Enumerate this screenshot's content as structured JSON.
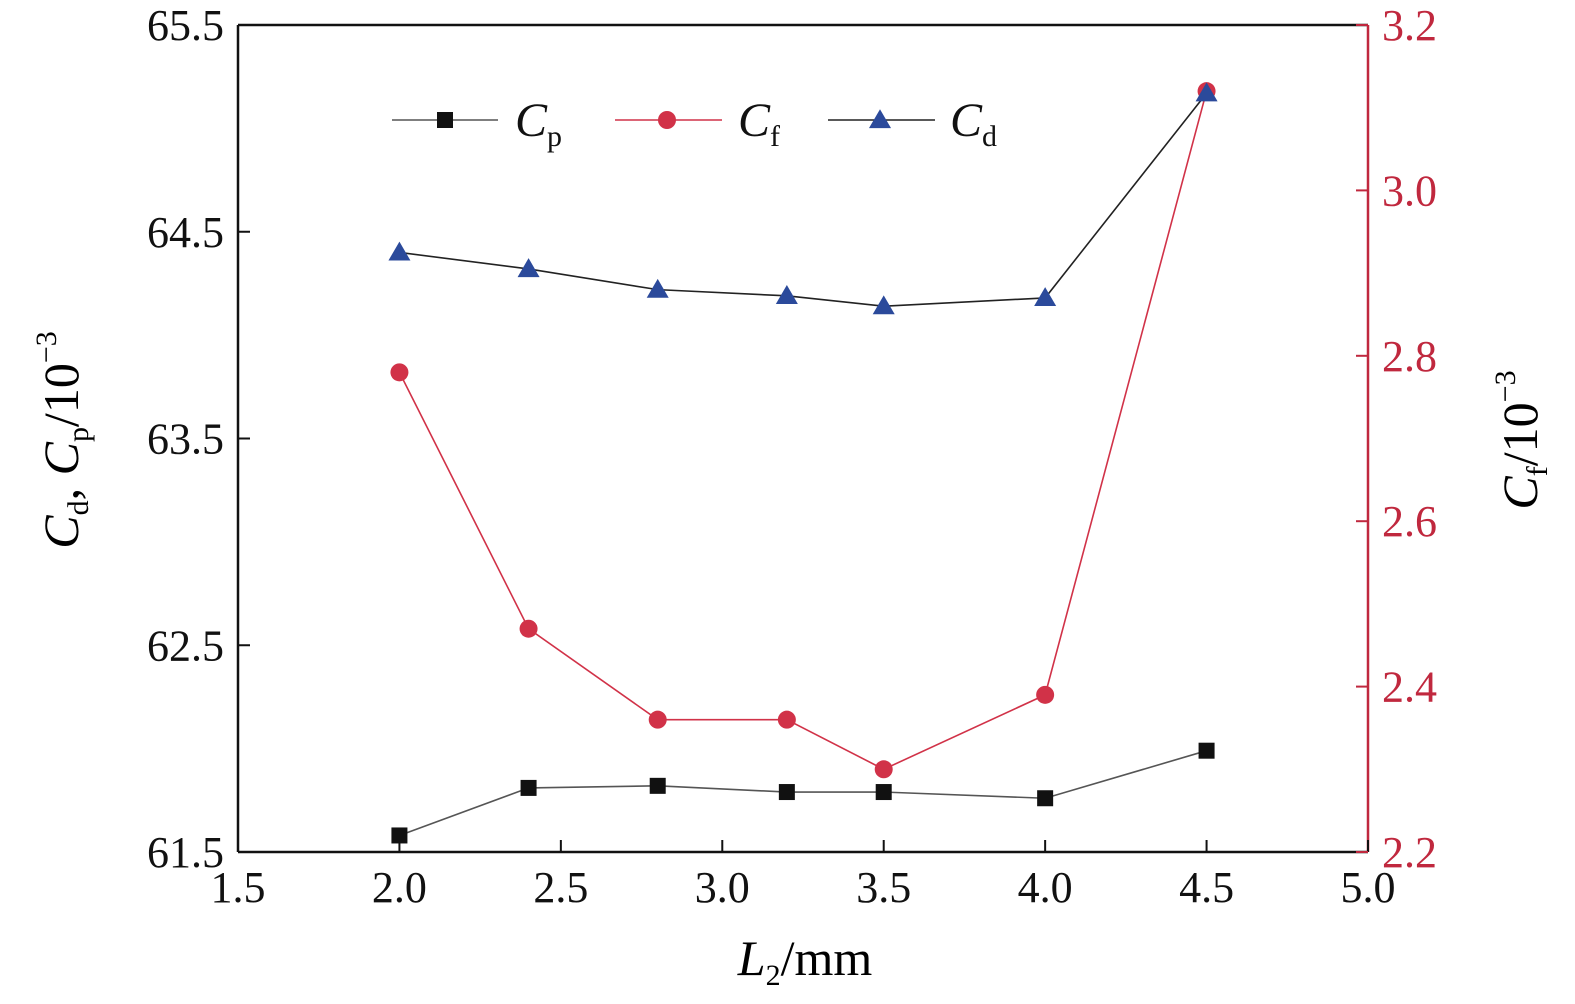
{
  "chart_data": {
    "type": "line",
    "x": [
      2.0,
      2.4,
      2.8,
      3.2,
      3.5,
      4.0,
      4.5
    ],
    "xlim": [
      1.5,
      5.0
    ],
    "xticks": [
      "1.5",
      "2.0",
      "2.5",
      "3.0",
      "3.5",
      "4.0",
      "4.5",
      "5.0"
    ],
    "ylim_left": [
      61.5,
      65.5
    ],
    "yticks_left": [
      "61.5",
      "62.5",
      "63.5",
      "64.5",
      "65.5"
    ],
    "ylim_right": [
      2.2,
      3.2
    ],
    "yticks_right": [
      "2.2",
      "2.4",
      "2.6",
      "2.8",
      "3.0",
      "3.2"
    ],
    "xlabel": {
      "main": "L",
      "sub": "2",
      "unit": "/mm"
    },
    "ylabel_left": {
      "c1": "C",
      "s1": "d",
      "sep": ", ",
      "c2": "C",
      "s2": "p",
      "unit": "/10",
      "exp": "−3"
    },
    "ylabel_right": {
      "c": "C",
      "s": "f",
      "unit": "/10",
      "exp": "−3"
    },
    "grid": false,
    "legend_position": "top",
    "series": [
      {
        "name": "C",
        "name_sub": "p",
        "axis": "left",
        "marker": "square",
        "color": "#111111",
        "line_color": "#555555",
        "values": [
          61.58,
          61.81,
          61.82,
          61.79,
          61.79,
          61.76,
          61.99
        ]
      },
      {
        "name": "C",
        "name_sub": "f",
        "axis": "right",
        "marker": "circle",
        "color": "#d13248",
        "line_color": "#d13248",
        "values": [
          2.78,
          2.47,
          2.36,
          2.36,
          2.3,
          2.39,
          3.12
        ]
      },
      {
        "name": "C",
        "name_sub": "d",
        "axis": "left",
        "marker": "triangle",
        "color": "#2b4a9b",
        "line_color": "#222222",
        "values": [
          64.4,
          64.32,
          64.22,
          64.19,
          64.14,
          64.18,
          65.17
        ]
      }
    ],
    "colors": {
      "right_axis": "#c0283e",
      "left_axis": "#111111"
    }
  }
}
